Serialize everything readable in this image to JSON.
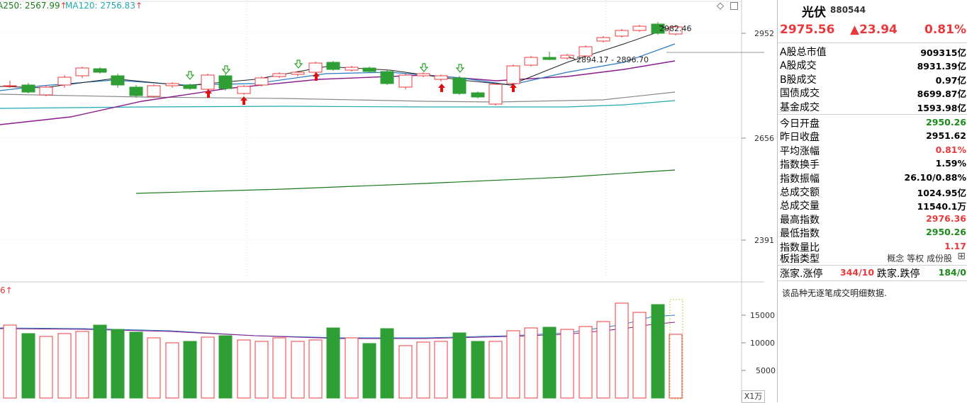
{
  "ma_labels": [
    {
      "text": "A250: 2567.99",
      "color": "#1a7a1a",
      "arrow": "↑"
    },
    {
      "text": "MA120: 2756.83",
      "color": "#1fa9b0",
      "arrow": "↑"
    }
  ],
  "vol_prefix": {
    "text": "6",
    "arrow": "↑"
  },
  "price_axis": [
    "2952",
    "2656",
    "2391"
  ],
  "volume_axis": [
    "15000",
    "10000",
    "5000"
  ],
  "volume_unit": "X1万",
  "annotations": {
    "high": "2982.46",
    "range": "2894.17 - 2896.70"
  },
  "toolbar": {
    "diamond": "◇",
    "window": "□"
  },
  "colors": {
    "up": "#e8393d",
    "down": "#2e9e35",
    "ma5": "#222222",
    "ma10": "#2a78c4",
    "ma20": "#8b1a8b",
    "ma60": "#888888",
    "ma120": "#1fa9b0",
    "ma250": "#1a7a1a"
  },
  "header": {
    "name": "光伏",
    "code": "880544",
    "price": "2975.56",
    "change": "▲23.94",
    "pct": "0.81%"
  },
  "stats": [
    {
      "label": "A股总市值",
      "value": "909315亿",
      "cls": "black"
    },
    {
      "label": "A股成交",
      "value": "8931.39亿",
      "cls": "black"
    },
    {
      "label": "B股成交",
      "value": "0.97亿",
      "cls": "black"
    },
    {
      "label": "国债成交",
      "value": "8699.87亿",
      "cls": "black"
    },
    {
      "label": "基金成交",
      "value": "1593.98亿",
      "cls": "black"
    },
    {
      "label": "今日开盘",
      "value": "2950.26",
      "cls": "green"
    },
    {
      "label": "昨日收盘",
      "value": "2951.62",
      "cls": "black"
    },
    {
      "label": "平均涨幅",
      "value": "0.81%",
      "cls": "red"
    },
    {
      "label": "指数换手",
      "value": "1.59%",
      "cls": "black"
    },
    {
      "label": "指数振幅",
      "value": "26.10/0.88%",
      "cls": "black"
    },
    {
      "label": "总成交额",
      "value": "1024.95亿",
      "cls": "black"
    },
    {
      "label": "总成交量",
      "value": "11540.1万",
      "cls": "black"
    },
    {
      "label": "最高指数",
      "value": "2976.36",
      "cls": "red"
    },
    {
      "label": "最低指数",
      "value": "2950.26",
      "cls": "green"
    },
    {
      "label": "指数量比",
      "value": "1.17",
      "cls": "red"
    }
  ],
  "sector": {
    "label": "板指类型",
    "links": [
      "概念",
      "等权",
      "成份股"
    ],
    "icon": "⊞"
  },
  "limits": {
    "label1": "涨家.涨停",
    "value1": "344/10",
    "label2": "跌家.跌停",
    "value2": "184/0"
  },
  "no_detail": "该品种无逐笔成交明细数据."
}
